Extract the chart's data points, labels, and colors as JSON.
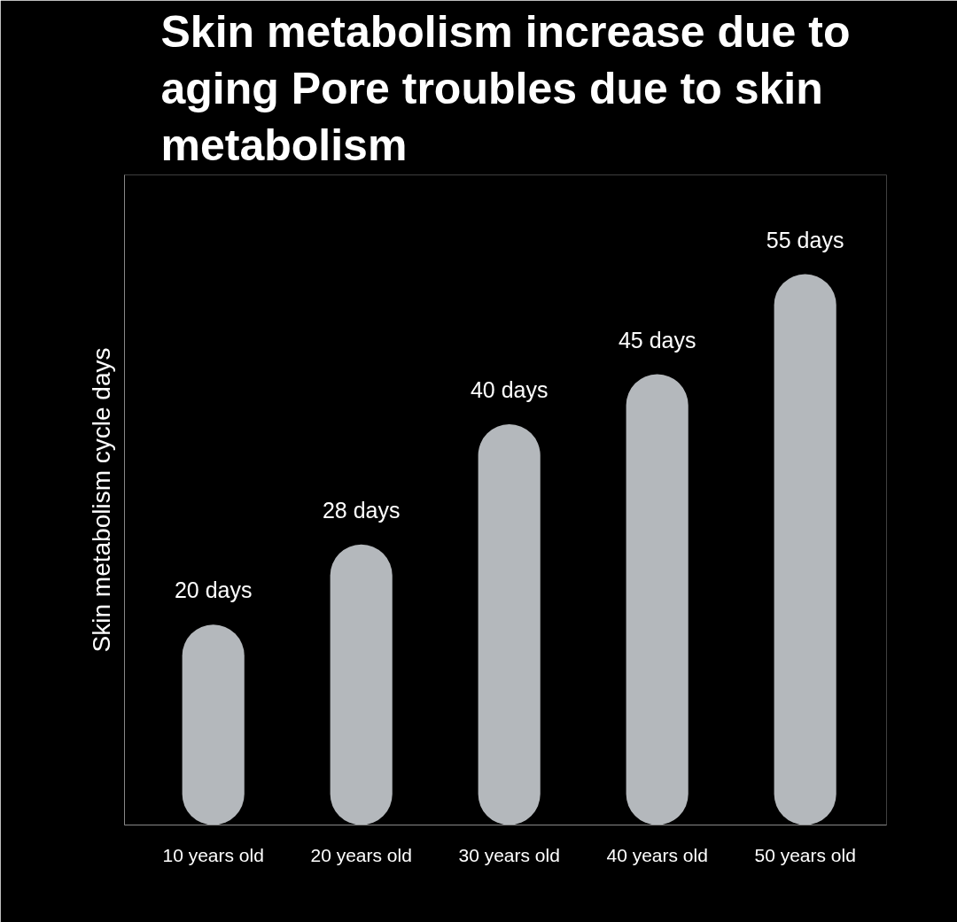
{
  "chart_data": {
    "type": "bar",
    "title": "Skin metabolism increase due to aging  Pore troubles due to skin metabolism",
    "ylabel": "Skin metabolism cycle days",
    "categories": [
      "10 years old",
      "20 years old",
      "30 years old",
      "40 years old",
      "50 years old"
    ],
    "values": [
      20,
      28,
      40,
      45,
      55
    ],
    "value_labels": [
      "20 days",
      "28 days",
      "40 days",
      "45 days",
      "55 days"
    ],
    "color": "#b4b8bc",
    "tick_labels": "x",
    "grid": false
  }
}
